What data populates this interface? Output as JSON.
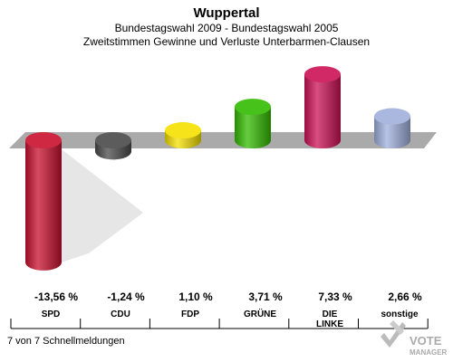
{
  "header": {
    "title": "Wuppertal",
    "subtitle1": "Bundestagswahl 2009 - Bundestagswahl 2005",
    "subtitle2": "Zweitstimmen Gewinne und Verluste Unterbarmen-Clausen"
  },
  "footer": {
    "reports": "7 von 7 Schnellmeldungen",
    "logo_top": "VOTE",
    "logo_bottom": "MANAGER"
  },
  "chart_data": {
    "type": "bar",
    "title": "Wuppertal",
    "categories": [
      "SPD",
      "CDU",
      "FDP",
      "GRÜNE",
      "DIE LINKE",
      "sonstige"
    ],
    "value_labels": [
      "-13,56 %",
      "-1,24 %",
      "1,10 %",
      "3,71 %",
      "7,33 %",
      "2,66 %"
    ],
    "values": [
      -13.56,
      -1.24,
      1.1,
      3.71,
      7.33,
      2.66
    ],
    "colors": [
      "#c8102e",
      "#4a4a4a",
      "#f5e000",
      "#33bb00",
      "#cc1155",
      "#a0b0dd"
    ],
    "unit": "%"
  }
}
